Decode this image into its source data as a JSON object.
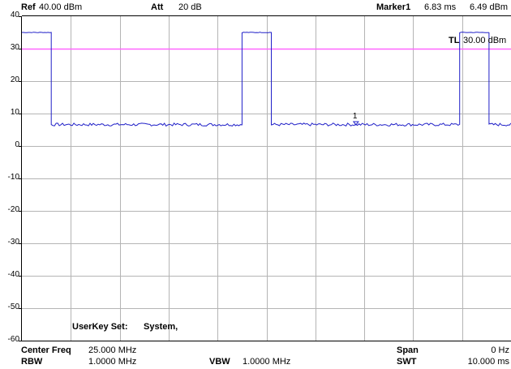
{
  "header": {
    "ref_label": "Ref",
    "ref_value": "40.00 dBm",
    "att_label": "Att",
    "att_value": "20 dB",
    "marker_label": "Marker1",
    "marker_time": "6.83 ms",
    "marker_level": "6.49 dBm"
  },
  "trace_label": {
    "tl_label": "TL",
    "tl_value": "30.00 dBm",
    "marker_number": "1"
  },
  "overlay": {
    "userkey_label": "UserKey Set:",
    "userkey_value": "System,"
  },
  "footer": {
    "center_freq_label": "Center Freq",
    "center_freq_value": "25.000 MHz",
    "rbw_label": "RBW",
    "rbw_value": "1.0000 MHz",
    "vbw_label": "VBW",
    "vbw_value": "1.0000 MHz",
    "span_label": "Span",
    "span_value": "0 Hz",
    "swt_label": "SWT",
    "swt_value": "10.000 ms"
  },
  "colors": {
    "trace": "#2020c8",
    "threshold_line": "#ff66ff",
    "grid": "#b4b4b4",
    "frame": "#000000"
  },
  "chart_data": {
    "type": "line",
    "ylim": [
      -60,
      40
    ],
    "xlim_ms": [
      0,
      10
    ],
    "y_ticks": [
      "40",
      "30",
      "20",
      "10",
      "0",
      "-10",
      "-20",
      "-30",
      "-40",
      "-50",
      "-60"
    ],
    "threshold_dBm": 30,
    "marker": {
      "x_ms": 6.83,
      "y_dBm": 6.49
    },
    "series": [
      {
        "x_ms": [
          0,
          0.6,
          0.6,
          4.5,
          4.5,
          5.1,
          5.1,
          8.95,
          8.95,
          9.55,
          9.55,
          10
        ],
        "y_dBm": [
          35,
          35,
          6.6,
          6.6,
          35,
          35,
          6.6,
          6.6,
          35,
          35,
          6.6,
          6.6
        ]
      }
    ]
  }
}
